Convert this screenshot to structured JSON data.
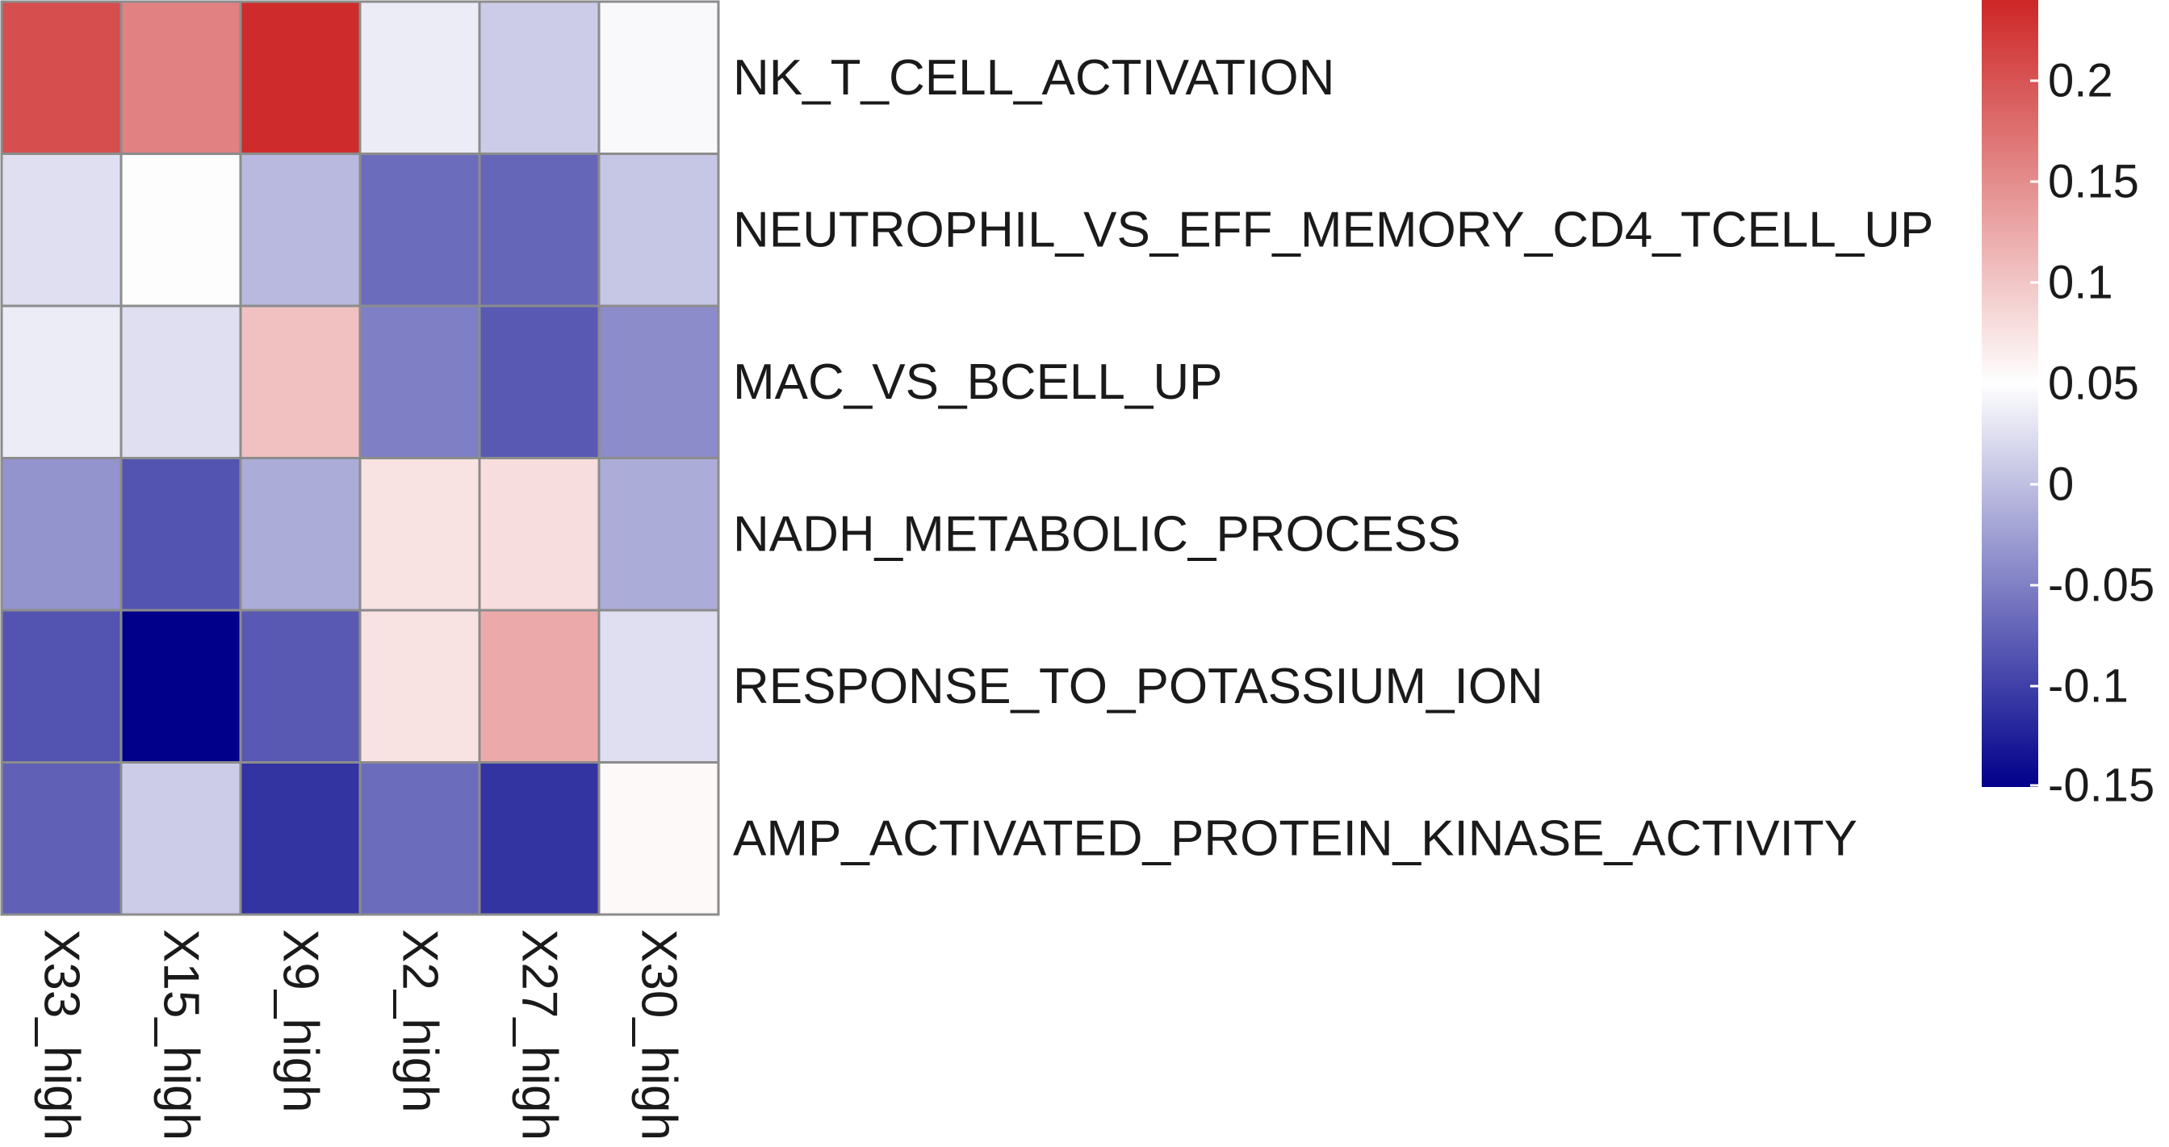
{
  "chart_data": {
    "type": "heatmap",
    "title": "",
    "xlabel": "",
    "ylabel": "",
    "columns": [
      "X33_high",
      "X15_high",
      "X9_high",
      "X2_high",
      "X27_high",
      "X30_high"
    ],
    "rows": [
      "NK_T_CELL_ACTIVATION",
      "NEUTROPHIL_VS_EFF_MEMORY_CD4_TCELL_UP",
      "MAC_VS_BCELL_UP",
      "NADH_METABOLIC_PROCESS",
      "RESPONSE_TO_POTASSIUM_ION",
      "AMP_ACTIVATED_PROTEIN_KINASE_ACTIVITY"
    ],
    "values": [
      [
        0.205,
        0.16,
        0.235,
        0.035,
        0.01,
        0.045
      ],
      [
        0.025,
        0.052,
        -0.005,
        -0.065,
        -0.07,
        0.005
      ],
      [
        0.035,
        0.025,
        0.105,
        -0.05,
        -0.08,
        -0.04
      ],
      [
        -0.035,
        -0.085,
        -0.015,
        0.075,
        0.08,
        -0.015
      ],
      [
        -0.085,
        -0.15,
        -0.08,
        0.075,
        0.125,
        0.025
      ],
      [
        -0.075,
        0.01,
        -0.11,
        -0.065,
        -0.11,
        0.055
      ]
    ],
    "color_scale": {
      "min": -0.15,
      "mid": 0.05,
      "max": 0.24,
      "low_color": "#00008b",
      "mid_color": "#ffffff",
      "high_color": "#cd2626"
    },
    "legend": {
      "position": "right",
      "ticks": [
        0.2,
        0.15,
        0.1,
        0.05,
        0,
        -0.05,
        -0.1,
        -0.15
      ],
      "tick_labels": [
        "0.2",
        "0.15",
        "0.1",
        "0.05",
        "0",
        "-0.05",
        "-0.1",
        "-0.15"
      ]
    },
    "cell_border_color": "#8c8c8c",
    "grid": true
  }
}
